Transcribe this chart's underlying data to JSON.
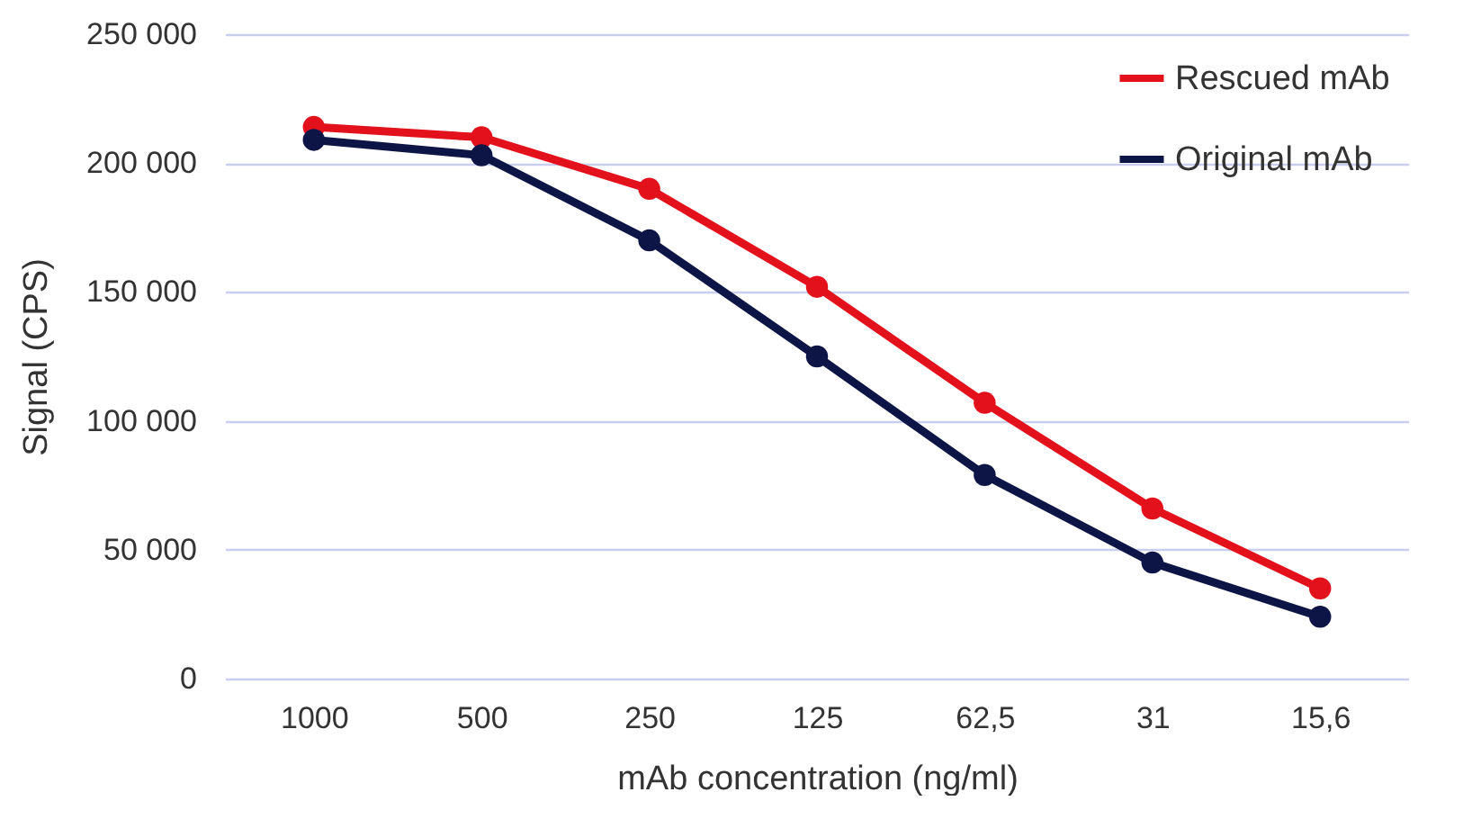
{
  "chart_data": {
    "type": "line",
    "xlabel": "mAb concentration (ng/ml)",
    "ylabel": "Signal (CPS)",
    "categories": [
      "1000",
      "500",
      "250",
      "125",
      "62,5",
      "31",
      "15,6"
    ],
    "series": [
      {
        "name": "Rescued mAb",
        "color": "#e3111b",
        "values": [
          214000,
          210000,
          190000,
          152000,
          107000,
          66000,
          35000
        ]
      },
      {
        "name": "Original mAb",
        "color": "#0d1547",
        "values": [
          209000,
          203000,
          170000,
          125000,
          79000,
          45000,
          24000
        ]
      }
    ],
    "ylim": [
      0,
      250000
    ],
    "yticks": [
      0,
      {
        "value": 50000,
        "label": "50 000"
      },
      {
        "value": 100000,
        "label": "100 000"
      },
      {
        "value": 150000,
        "label": "150 000"
      },
      {
        "value": 200000,
        "label": "200 000"
      },
      {
        "value": 250000,
        "label": "250 000"
      }
    ],
    "grid": "y",
    "legend": "top right",
    "marker": "circle",
    "line_style": "solid"
  }
}
